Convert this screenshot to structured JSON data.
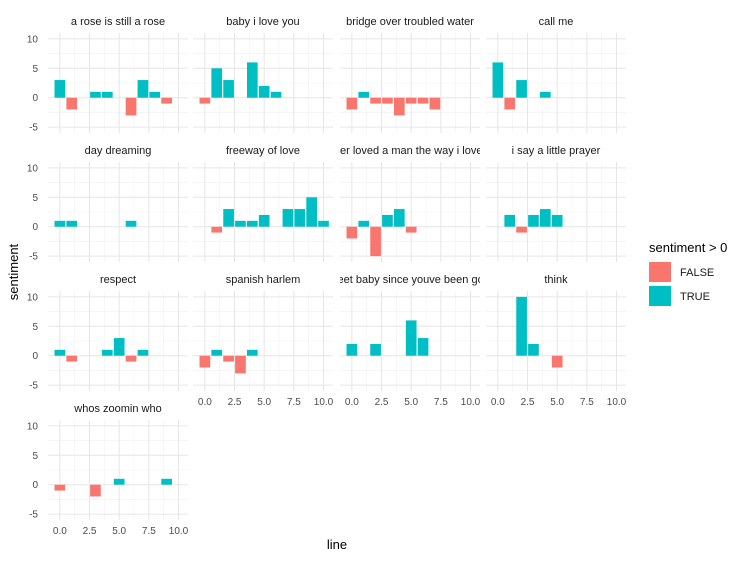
{
  "chart_data": {
    "type": "bar",
    "xlabel": "line",
    "ylabel": "sentiment",
    "xlim": [
      -1,
      10.8
    ],
    "ylim": [
      -6,
      11
    ],
    "x_ticks": [
      0,
      2.5,
      5,
      7.5,
      10
    ],
    "x_tick_labels": [
      "0.0",
      "2.5",
      "5.0",
      "7.5",
      "10.0"
    ],
    "y_ticks": [
      -5,
      0,
      5,
      10
    ],
    "y_tick_labels": [
      "-5",
      "0",
      "5",
      "10"
    ],
    "grid": true,
    "legend": {
      "title": "sentiment > 0",
      "position": "right",
      "entries": [
        {
          "label": "FALSE",
          "color": "#F8766D"
        },
        {
          "label": "TRUE",
          "color": "#00BFC4"
        }
      ]
    },
    "colors": {
      "negative": "#F8766D",
      "positive": "#00BFC4"
    },
    "panels": [
      {
        "title": "a rose is still a rose",
        "x": [
          0,
          1,
          3,
          4,
          6,
          7,
          8,
          9
        ],
        "values": [
          3,
          -2,
          1,
          1,
          -3,
          3,
          1,
          -1
        ]
      },
      {
        "title": "baby i love you",
        "x": [
          0,
          1,
          2,
          3,
          4,
          5,
          6
        ],
        "values": [
          -1,
          5,
          3,
          0,
          6,
          2,
          1
        ]
      },
      {
        "title": "bridge over troubled water",
        "x": [
          0,
          1,
          2,
          3,
          4,
          5,
          6,
          7
        ],
        "values": [
          -2,
          1,
          -1,
          -1,
          -3,
          -1,
          -1,
          -2
        ]
      },
      {
        "title": "call me",
        "x": [
          0,
          1,
          2,
          4
        ],
        "values": [
          6,
          -2,
          3,
          1
        ]
      },
      {
        "title": "day dreaming",
        "x": [
          0,
          1,
          6
        ],
        "values": [
          1,
          1,
          1
        ]
      },
      {
        "title": "freeway of love",
        "x": [
          1,
          2,
          3,
          4,
          5,
          7,
          8,
          9,
          10
        ],
        "values": [
          -1,
          3,
          1,
          1,
          2,
          3,
          3,
          5,
          1
        ]
      },
      {
        "title": "i never loved a man the way i love you",
        "x": [
          0,
          1,
          2,
          3,
          4,
          5
        ],
        "values": [
          -2,
          1,
          -5,
          2,
          3,
          -1
        ]
      },
      {
        "title": "i say a little prayer",
        "x": [
          1,
          2,
          3,
          4,
          5
        ],
        "values": [
          2,
          -1,
          2,
          3,
          2
        ]
      },
      {
        "title": "respect",
        "x": [
          0,
          1,
          4,
          5,
          6,
          7
        ],
        "values": [
          1,
          -1,
          1,
          3,
          -1,
          1
        ]
      },
      {
        "title": "spanish harlem",
        "x": [
          0,
          1,
          2,
          3,
          4
        ],
        "values": [
          -2,
          1,
          -1,
          -3,
          1
        ]
      },
      {
        "title": "sweet baby since youve been gone",
        "x": [
          0,
          2,
          5,
          6
        ],
        "values": [
          2,
          2,
          6,
          3
        ]
      },
      {
        "title": "think",
        "x": [
          2,
          3,
          5
        ],
        "values": [
          10,
          2,
          -2
        ]
      },
      {
        "title": "whos zoomin who",
        "x": [
          0,
          3,
          5,
          9
        ],
        "values": [
          -1,
          -2,
          1,
          1
        ]
      }
    ]
  }
}
